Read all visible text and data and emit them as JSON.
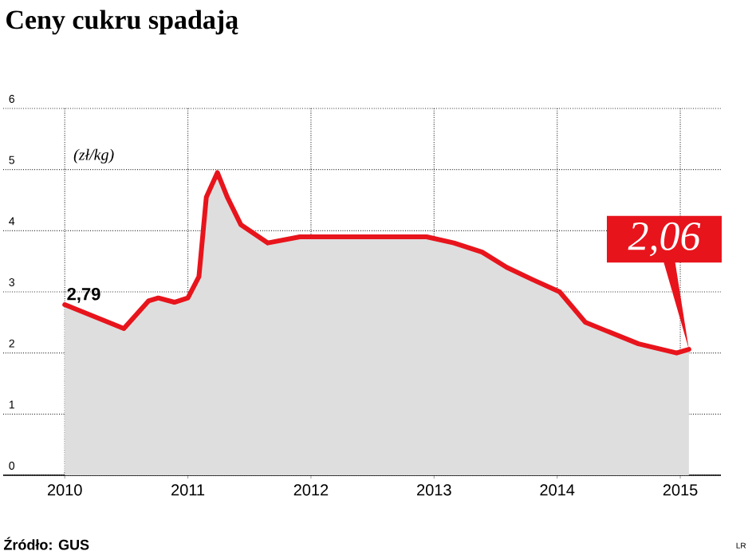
{
  "chart_data": {
    "type": "area",
    "title": "Ceny cukru spadają",
    "ylabel": "(zł/kg)",
    "x": [
      2010.0,
      2010.48,
      2010.68,
      2010.76,
      2010.89,
      2011.0,
      2011.09,
      2011.15,
      2011.24,
      2011.32,
      2011.43,
      2011.65,
      2011.91,
      2012.51,
      2012.94,
      2013.16,
      2013.39,
      2013.59,
      2013.8,
      2014.02,
      2014.23,
      2014.66,
      2014.97,
      2015.07
    ],
    "series": [
      {
        "color": "#e8141c",
        "values": [
          2.79,
          2.4,
          2.85,
          2.9,
          2.83,
          2.9,
          3.25,
          4.55,
          4.95,
          4.55,
          4.1,
          3.8,
          3.9,
          3.9,
          3.9,
          3.8,
          3.65,
          3.4,
          3.2,
          3.0,
          2.5,
          2.15,
          2.0,
          2.06
        ]
      }
    ],
    "xlim": [
      2009.5,
      2015.33
    ],
    "ylim": [
      0,
      6
    ],
    "xticks": [
      2010,
      2011,
      2012,
      2013,
      2014,
      2015
    ],
    "yticks": [
      0,
      1,
      2,
      3,
      4,
      5,
      6
    ],
    "grid": true,
    "annotations": [
      {
        "text": "2,79",
        "x": 2010.0,
        "y": 2.79
      },
      {
        "text": "2,06",
        "x": 2015.07,
        "y": 2.06
      },
      "Źródło: GUS",
      "LR"
    ]
  }
}
